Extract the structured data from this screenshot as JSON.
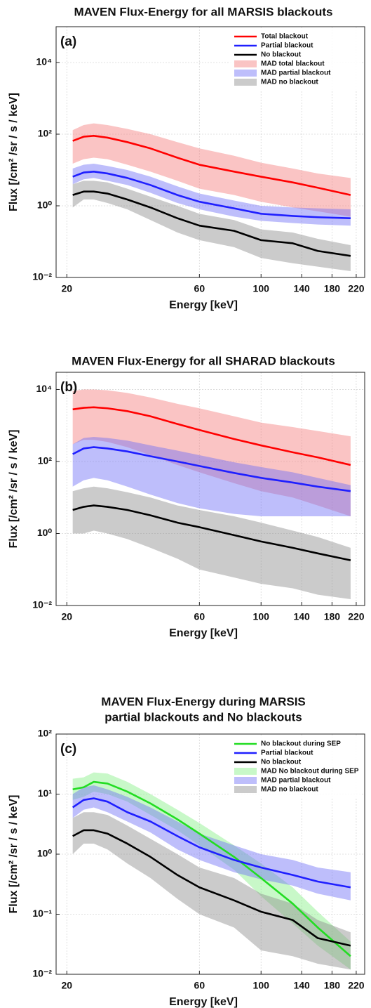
{
  "chart_data": [
    {
      "type": "line",
      "title": "MAVEN Flux-Energy for all MARSIS blackouts",
      "panel_label": "(a)",
      "xlabel": "Energy [keV]",
      "ylabel": "Flux [/cm² /sr / s / keV]",
      "xscale": "log",
      "yscale": "log",
      "grid": true,
      "legend": "upper right",
      "xlim": [
        18.3,
        236
      ],
      "xticks": [
        20,
        60,
        100,
        140,
        180,
        220
      ],
      "ylim": [
        0.01,
        100000
      ],
      "yticks": [
        {
          "value": 0.01,
          "label": "10⁻²"
        },
        {
          "value": 1,
          "label": "10⁰"
        },
        {
          "value": 100,
          "label": "10²"
        },
        {
          "value": 10000,
          "label": "10⁴"
        }
      ],
      "x": [
        21,
        23,
        25,
        28,
        33,
        40,
        50,
        60,
        80,
        100,
        130,
        160,
        210
      ],
      "series": [
        {
          "name": "Total blackout",
          "color": "#ff0000",
          "values": [
            65,
            85,
            90,
            80,
            60,
            40,
            22,
            14,
            9,
            6.5,
            4.5,
            3.2,
            2
          ]
        },
        {
          "name": "Partial blackout",
          "color": "#1f1fff",
          "values": [
            6.5,
            8.5,
            9,
            8,
            6,
            3.8,
            2,
            1.3,
            0.85,
            0.6,
            0.52,
            0.48,
            0.45
          ]
        },
        {
          "name": "No blackout",
          "color": "#000000",
          "values": [
            2,
            2.5,
            2.5,
            2.2,
            1.5,
            0.9,
            0.45,
            0.28,
            0.2,
            0.11,
            0.09,
            0.055,
            0.04
          ]
        }
      ],
      "bands": [
        {
          "name": "MAD total blackout",
          "color": "#f47c7c",
          "lower": [
            15,
            20,
            22,
            20,
            14,
            9,
            5,
            3,
            2,
            1.3,
            0.9,
            0.7,
            0.5
          ],
          "upper": [
            130,
            180,
            200,
            180,
            140,
            100,
            60,
            40,
            25,
            16,
            11,
            8,
            6
          ]
        },
        {
          "name": "MAD partial blackout",
          "color": "#6f6ff7",
          "lower": [
            4,
            5.5,
            6,
            5,
            3.8,
            2.3,
            1.2,
            0.8,
            0.5,
            0.38,
            0.33,
            0.3,
            0.28
          ],
          "upper": [
            11,
            14,
            15,
            13,
            10,
            6.5,
            3.5,
            2.2,
            1.4,
            1,
            0.9,
            0.85,
            0.8
          ]
        },
        {
          "name": "MAD no blackout",
          "color": "#8c8c8c",
          "lower": [
            0.9,
            1.5,
            1.5,
            1.2,
            0.8,
            0.4,
            0.18,
            0.11,
            0.07,
            0.035,
            0.025,
            0.02,
            0.015
          ],
          "upper": [
            4,
            5,
            5,
            4.5,
            3,
            1.8,
            1,
            0.6,
            0.4,
            0.22,
            0.18,
            0.12,
            0.08
          ]
        }
      ]
    },
    {
      "type": "line",
      "title": "MAVEN Flux-Energy for all SHARAD blackouts",
      "panel_label": "(b)",
      "xlabel": "Energy [keV]",
      "ylabel": "Flux [/cm² /sr / s / keV]",
      "xscale": "log",
      "yscale": "log",
      "grid": true,
      "xlim": [
        18.3,
        236
      ],
      "xticks": [
        20,
        60,
        100,
        140,
        180,
        220
      ],
      "ylim": [
        0.01,
        30000
      ],
      "yticks": [
        {
          "value": 0.01,
          "label": "10⁻²"
        },
        {
          "value": 1,
          "label": "10⁰"
        },
        {
          "value": 100,
          "label": "10²"
        },
        {
          "value": 10000,
          "label": "10⁴"
        }
      ],
      "x": [
        21,
        23,
        25,
        28,
        33,
        40,
        50,
        60,
        80,
        100,
        130,
        160,
        210
      ],
      "series": [
        {
          "color": "#ff0000",
          "values": [
            2800,
            3100,
            3200,
            3000,
            2500,
            1800,
            1100,
            750,
            420,
            280,
            180,
            130,
            80
          ]
        },
        {
          "color": "#1f1fff",
          "values": [
            160,
            230,
            250,
            230,
            190,
            140,
            100,
            75,
            48,
            35,
            26,
            20,
            15
          ]
        },
        {
          "color": "#000000",
          "values": [
            4.5,
            5.5,
            6,
            5.5,
            4.5,
            3.2,
            2,
            1.5,
            0.9,
            0.6,
            0.4,
            0.28,
            0.18
          ]
        }
      ],
      "bands": [
        {
          "color": "#f47c7c",
          "lower": [
            300,
            400,
            400,
            350,
            250,
            150,
            80,
            50,
            25,
            15,
            10,
            6,
            3
          ],
          "upper": [
            9000,
            10000,
            10000,
            9500,
            8000,
            6000,
            4000,
            3000,
            1800,
            1200,
            900,
            700,
            500
          ]
        },
        {
          "color": "#6f6ff7",
          "lower": [
            20,
            30,
            35,
            30,
            20,
            12,
            7,
            5,
            3.5,
            3,
            3,
            3,
            3
          ],
          "upper": [
            300,
            450,
            480,
            450,
            380,
            280,
            200,
            150,
            95,
            70,
            50,
            35,
            22
          ]
        },
        {
          "color": "#8c8c8c",
          "lower": [
            1,
            1,
            1.2,
            1,
            0.7,
            0.4,
            0.2,
            0.1,
            0.06,
            0.04,
            0.03,
            0.02,
            0.015
          ],
          "upper": [
            15,
            18,
            20,
            18,
            14,
            10,
            6,
            4.5,
            3,
            2,
            1.2,
            0.8,
            0.4
          ]
        }
      ]
    },
    {
      "type": "line",
      "title": [
        "MAVEN Flux-Energy during MARSIS",
        "partial blackouts and No blackouts"
      ],
      "panel_label": "(c)",
      "xlabel": "Energy [keV]",
      "ylabel": "Flux [/cm² /sr / s / keV]",
      "xscale": "log",
      "yscale": "log",
      "grid": true,
      "legend": "upper right",
      "xlim": [
        18.3,
        236
      ],
      "xticks": [
        20,
        60,
        100,
        140,
        180,
        220
      ],
      "ylim": [
        0.01,
        100
      ],
      "yticks": [
        {
          "value": 0.01,
          "label": "10⁻²"
        },
        {
          "value": 0.1,
          "label": "10⁻¹"
        },
        {
          "value": 1,
          "label": "10⁰"
        },
        {
          "value": 10,
          "label": "10¹"
        },
        {
          "value": 100,
          "label": "10²"
        }
      ],
      "x": [
        21,
        23,
        25,
        28,
        33,
        40,
        50,
        60,
        80,
        100,
        130,
        160,
        210
      ],
      "series": [
        {
          "name": "No blackout during SEP",
          "color": "#22dd22",
          "values": [
            12,
            13,
            16,
            15,
            11,
            7,
            3.8,
            2.2,
            0.9,
            0.4,
            0.15,
            0.06,
            0.02
          ]
        },
        {
          "name": "Partial blackout",
          "color": "#1f1fff",
          "values": [
            6,
            8,
            8.5,
            7.5,
            5,
            3.5,
            2,
            1.3,
            0.8,
            0.6,
            0.45,
            0.35,
            0.28
          ]
        },
        {
          "name": "No blackout",
          "color": "#000000",
          "values": [
            2,
            2.5,
            2.5,
            2.2,
            1.5,
            0.9,
            0.45,
            0.28,
            0.17,
            0.11,
            0.08,
            0.04,
            0.03
          ]
        }
      ],
      "bands": [
        {
          "name": "MAD No blackout during SEP",
          "color": "#86f086",
          "lower": [
            8,
            9,
            11,
            10,
            7.5,
            4.5,
            2.5,
            1.4,
            0.55,
            0.2,
            0.07,
            0.03,
            0.012
          ],
          "upper": [
            18,
            19,
            23,
            22,
            16,
            10,
            5.5,
            3.3,
            1.4,
            0.7,
            0.28,
            0.11,
            0.035
          ]
        },
        {
          "name": "MAD partial blackout",
          "color": "#6f6ff7",
          "lower": [
            4,
            5.5,
            6,
            5,
            3.5,
            2.3,
            1.2,
            0.8,
            0.5,
            0.38,
            0.3,
            0.22,
            0.17
          ],
          "upper": [
            10,
            13,
            14,
            12,
            9,
            6,
            3.5,
            2.2,
            1.4,
            1,
            0.8,
            0.6,
            0.5
          ]
        },
        {
          "name": "MAD no blackout",
          "color": "#8c8c8c",
          "lower": [
            1,
            1.5,
            1.5,
            1.2,
            0.7,
            0.4,
            0.18,
            0.1,
            0.06,
            0.025,
            0.02,
            0.015,
            0.012
          ],
          "upper": [
            4,
            5,
            5,
            4.5,
            3,
            1.8,
            1,
            0.6,
            0.4,
            0.22,
            0.15,
            0.08,
            0.05
          ]
        }
      ]
    }
  ]
}
